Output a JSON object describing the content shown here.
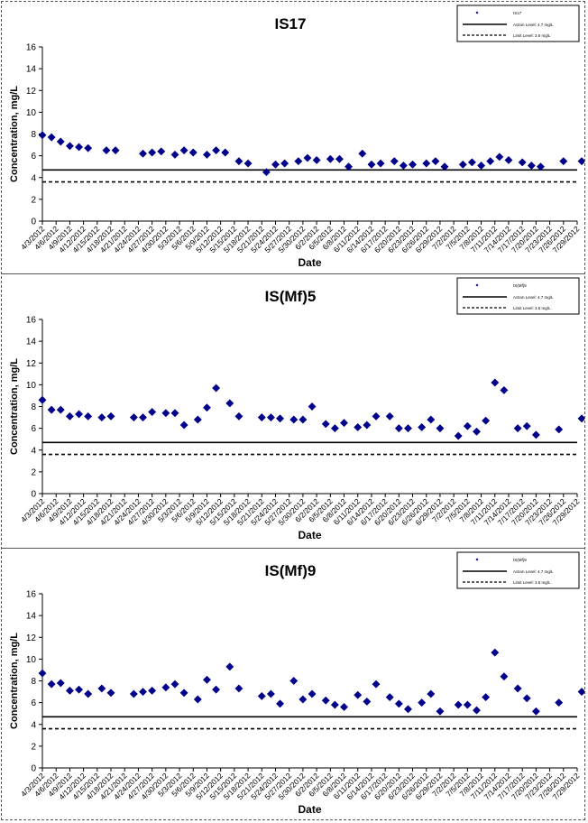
{
  "chart_data": [
    {
      "type": "scatter",
      "title": "IS17",
      "xlabel": "Date",
      "ylabel": "Concentration, mg/L",
      "ylim": [
        0,
        16
      ],
      "y_ticks": [
        0,
        2,
        4,
        6,
        8,
        10,
        12,
        14,
        16
      ],
      "x_tick_labels": [
        "4/3/2012",
        "4/6/2012",
        "4/9/2012",
        "4/12/2012",
        "4/15/2012",
        "4/18/2012",
        "4/21/2012",
        "4/24/2012",
        "4/27/2012",
        "4/30/2012",
        "5/3/2012",
        "5/6/2012",
        "5/9/2012",
        "5/12/2012",
        "5/15/2012",
        "5/18/2012",
        "5/21/2012",
        "5/24/2012",
        "5/27/2012",
        "5/30/2012",
        "6/2/2012",
        "6/5/2012",
        "6/8/2012",
        "6/11/2012",
        "6/14/2012",
        "6/17/2012",
        "6/20/2012",
        "6/23/2012",
        "6/26/2012",
        "6/29/2012",
        "7/2/2012",
        "7/5/2012",
        "7/8/2012",
        "7/11/2012",
        "7/14/2012",
        "7/17/2012",
        "7/20/2012",
        "7/23/2012",
        "7/26/2012",
        "7/29/2012"
      ],
      "legend": {
        "position": "top-right",
        "series_label": "IS17",
        "action_label": "Action Level: 4.7 mg/L",
        "limit_label": "Limit Level: 3.6 mg/L"
      },
      "series": [
        {
          "x": [
            "4/3/2012",
            "4/5/2012",
            "4/7/2012",
            "4/9/2012",
            "4/11/2012",
            "4/13/2012",
            "4/17/2012",
            "4/19/2012",
            "4/25/2012",
            "4/27/2012",
            "4/29/2012",
            "5/2/2012",
            "5/4/2012",
            "5/6/2012",
            "5/9/2012",
            "5/11/2012",
            "5/13/2012",
            "5/16/2012",
            "5/18/2012",
            "5/22/2012",
            "5/24/2012",
            "5/26/2012",
            "5/29/2012",
            "5/31/2012",
            "6/2/2012",
            "6/5/2012",
            "6/7/2012",
            "6/9/2012",
            "6/12/2012",
            "6/14/2012",
            "6/16/2012",
            "6/19/2012",
            "6/21/2012",
            "6/23/2012",
            "6/26/2012",
            "6/28/2012",
            "6/30/2012",
            "7/4/2012",
            "7/6/2012",
            "7/8/2012",
            "7/10/2012",
            "7/12/2012",
            "7/14/2012",
            "7/17/2012",
            "7/19/2012",
            "7/21/2012",
            "7/26/2012",
            "7/30/2012"
          ],
          "y": [
            7.9,
            7.7,
            7.3,
            6.9,
            6.8,
            6.7,
            6.5,
            6.5,
            6.2,
            6.3,
            6.4,
            6.1,
            6.5,
            6.3,
            6.1,
            6.5,
            6.3,
            5.5,
            5.3,
            4.5,
            5.2,
            5.3,
            5.5,
            5.8,
            5.6,
            5.7,
            5.7,
            5.0,
            6.2,
            5.2,
            5.3,
            5.5,
            5.1,
            5.2,
            5.3,
            5.5,
            5.0,
            5.2,
            5.4,
            5.1,
            5.5,
            5.9,
            5.6,
            5.4,
            5.1,
            5.0,
            5.5,
            5.5
          ]
        }
      ],
      "reference_lines": [
        {
          "name": "Action Level",
          "value": 4.7,
          "style": "solid"
        },
        {
          "name": "Limit Level",
          "value": 3.6,
          "style": "dashed"
        }
      ],
      "marker_color": "#00008b"
    },
    {
      "type": "scatter",
      "title": "IS(Mf)5",
      "xlabel": "Date",
      "ylabel": "Concentration, mg/L",
      "ylim": [
        0,
        16
      ],
      "y_ticks": [
        0,
        2,
        4,
        6,
        8,
        10,
        12,
        14,
        16
      ],
      "x_tick_labels": [
        "4/3/2012",
        "4/6/2012",
        "4/9/2012",
        "4/12/2012",
        "4/15/2012",
        "4/18/2012",
        "4/21/2012",
        "4/24/2012",
        "4/27/2012",
        "4/30/2012",
        "5/3/2012",
        "5/6/2012",
        "5/9/2012",
        "5/12/2012",
        "5/15/2012",
        "5/18/2012",
        "5/21/2012",
        "5/24/2012",
        "5/27/2012",
        "5/30/2012",
        "6/2/2012",
        "6/5/2012",
        "6/8/2012",
        "6/11/2012",
        "6/14/2012",
        "6/17/2012",
        "6/20/2012",
        "6/23/2012",
        "6/26/2012",
        "6/29/2012",
        "7/2/2012",
        "7/5/2012",
        "7/8/2012",
        "7/11/2012",
        "7/14/2012",
        "7/17/2012",
        "7/20/2012",
        "7/23/2012",
        "7/26/2012",
        "7/29/2012"
      ],
      "legend": {
        "position": "top-right",
        "series_label": "IS(Mf)5",
        "action_label": "Action Level: 4.7 mg/L",
        "limit_label": "Limit Level: 3.6 mg/L"
      },
      "series": [
        {
          "x": [
            "4/3/2012",
            "4/5/2012",
            "4/7/2012",
            "4/9/2012",
            "4/11/2012",
            "4/13/2012",
            "4/16/2012",
            "4/18/2012",
            "4/23/2012",
            "4/25/2012",
            "4/27/2012",
            "4/30/2012",
            "5/2/2012",
            "5/4/2012",
            "5/7/2012",
            "5/9/2012",
            "5/11/2012",
            "5/14/2012",
            "5/16/2012",
            "5/21/2012",
            "5/23/2012",
            "5/25/2012",
            "5/28/2012",
            "5/30/2012",
            "6/1/2012",
            "6/4/2012",
            "6/6/2012",
            "6/8/2012",
            "6/11/2012",
            "6/13/2012",
            "6/15/2012",
            "6/18/2012",
            "6/20/2012",
            "6/22/2012",
            "6/25/2012",
            "6/27/2012",
            "6/29/2012",
            "7/3/2012",
            "7/5/2012",
            "7/7/2012",
            "7/9/2012",
            "7/11/2012",
            "7/13/2012",
            "7/16/2012",
            "7/18/2012",
            "7/20/2012",
            "7/25/2012",
            "7/30/2012"
          ],
          "y": [
            8.6,
            7.7,
            7.7,
            7.1,
            7.3,
            7.1,
            7.0,
            7.1,
            7.0,
            7.0,
            7.5,
            7.4,
            7.4,
            6.3,
            6.8,
            7.9,
            9.7,
            8.3,
            7.1,
            7.0,
            7.0,
            6.9,
            6.8,
            6.8,
            8.0,
            6.4,
            6.0,
            6.5,
            6.1,
            6.3,
            7.1,
            7.1,
            6.0,
            6.0,
            6.1,
            6.8,
            6.0,
            5.3,
            6.2,
            5.7,
            6.7,
            10.2,
            9.5,
            6.0,
            6.2,
            5.4,
            5.9,
            6.9
          ]
        }
      ],
      "reference_lines": [
        {
          "name": "Action Level",
          "value": 4.7,
          "style": "solid"
        },
        {
          "name": "Limit Level",
          "value": 3.6,
          "style": "dashed"
        }
      ],
      "marker_color": "#00008b"
    },
    {
      "type": "scatter",
      "title": "IS(Mf)9",
      "xlabel": "Date",
      "ylabel": "Concentration, mg/L",
      "ylim": [
        0,
        16
      ],
      "y_ticks": [
        0,
        2,
        4,
        6,
        8,
        10,
        12,
        14,
        16
      ],
      "x_tick_labels": [
        "4/3/2012",
        "4/6/2012",
        "4/9/2012",
        "4/12/2012",
        "4/15/2012",
        "4/18/2012",
        "4/21/2012",
        "4/24/2012",
        "4/27/2012",
        "4/30/2012",
        "5/3/2012",
        "5/6/2012",
        "5/9/2012",
        "5/12/2012",
        "5/15/2012",
        "5/18/2012",
        "5/21/2012",
        "5/24/2012",
        "5/27/2012",
        "5/30/2012",
        "6/2/2012",
        "6/5/2012",
        "6/8/2012",
        "6/11/2012",
        "6/14/2012",
        "6/17/2012",
        "6/20/2012",
        "6/23/2012",
        "6/26/2012",
        "6/29/2012",
        "7/2/2012",
        "7/5/2012",
        "7/8/2012",
        "7/11/2012",
        "7/14/2012",
        "7/17/2012",
        "7/20/2012",
        "7/23/2012",
        "7/26/2012",
        "7/29/2012"
      ],
      "legend": {
        "position": "top-right",
        "series_label": "IS(Mf)9",
        "action_label": "Action Level: 4.7 mg/L",
        "limit_label": "Limit Level: 3.6 mg/L"
      },
      "series": [
        {
          "x": [
            "4/3/2012",
            "4/5/2012",
            "4/7/2012",
            "4/9/2012",
            "4/11/2012",
            "4/13/2012",
            "4/16/2012",
            "4/18/2012",
            "4/23/2012",
            "4/25/2012",
            "4/27/2012",
            "4/30/2012",
            "5/2/2012",
            "5/4/2012",
            "5/7/2012",
            "5/9/2012",
            "5/11/2012",
            "5/14/2012",
            "5/16/2012",
            "5/21/2012",
            "5/23/2012",
            "5/25/2012",
            "5/28/2012",
            "5/30/2012",
            "6/1/2012",
            "6/4/2012",
            "6/6/2012",
            "6/8/2012",
            "6/11/2012",
            "6/13/2012",
            "6/15/2012",
            "6/18/2012",
            "6/20/2012",
            "6/22/2012",
            "6/25/2012",
            "6/27/2012",
            "6/29/2012",
            "7/3/2012",
            "7/5/2012",
            "7/7/2012",
            "7/9/2012",
            "7/11/2012",
            "7/13/2012",
            "7/16/2012",
            "7/18/2012",
            "7/20/2012",
            "7/25/2012",
            "7/30/2012"
          ],
          "y": [
            8.7,
            7.7,
            7.8,
            7.1,
            7.2,
            6.8,
            7.3,
            6.9,
            6.8,
            7.0,
            7.1,
            7.4,
            7.7,
            6.9,
            6.3,
            8.1,
            7.2,
            9.3,
            7.3,
            6.6,
            6.8,
            5.9,
            8.0,
            6.3,
            6.8,
            6.2,
            5.8,
            5.6,
            6.7,
            6.1,
            7.7,
            6.5,
            5.9,
            5.4,
            6.0,
            6.8,
            5.2,
            5.8,
            5.8,
            5.3,
            6.5,
            10.6,
            8.4,
            7.3,
            6.4,
            5.2,
            6.0,
            7.0
          ]
        }
      ],
      "reference_lines": [
        {
          "name": "Action Level",
          "value": 4.7,
          "style": "solid"
        },
        {
          "name": "Limit Level",
          "value": 3.6,
          "style": "dashed"
        }
      ],
      "marker_color": "#00008b"
    }
  ]
}
